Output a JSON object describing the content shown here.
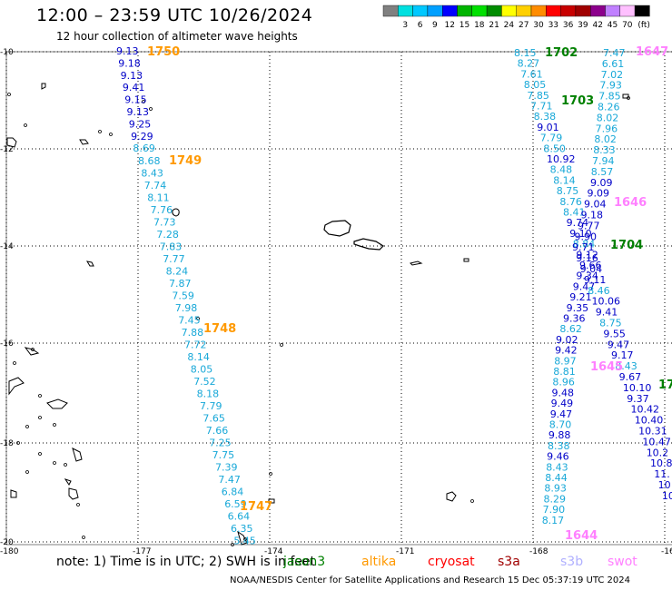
{
  "header": {
    "title": "12:00 – 23:59 UTC 10/26/2024",
    "subtitle": "12 hour collection of altimeter wave heights"
  },
  "colorbar": {
    "bins": [
      {
        "color": "#808080",
        "label": ""
      },
      {
        "color": "#00e0e0",
        "label": "3"
      },
      {
        "color": "#00c8ff",
        "label": "6"
      },
      {
        "color": "#00a0ff",
        "label": "9"
      },
      {
        "color": "#0000ff",
        "label": "12"
      },
      {
        "color": "#00b400",
        "label": "15"
      },
      {
        "color": "#00e000",
        "label": "18"
      },
      {
        "color": "#008c00",
        "label": "21"
      },
      {
        "color": "#ffff00",
        "label": "24"
      },
      {
        "color": "#ffd000",
        "label": "27"
      },
      {
        "color": "#ff8c00",
        "label": "30"
      },
      {
        "color": "#ff0000",
        "label": "33"
      },
      {
        "color": "#c80000",
        "label": "36"
      },
      {
        "color": "#a00000",
        "label": "39"
      },
      {
        "color": "#8c008c",
        "label": "42"
      },
      {
        "color": "#c080ff",
        "label": "45"
      },
      {
        "color": "#ffc0ff",
        "label": "70"
      },
      {
        "color": "#000000",
        "label": "(ft)"
      }
    ]
  },
  "axes": {
    "lat_labels": [
      "-10",
      "-12",
      "-14",
      "-16",
      "-18",
      "-20"
    ],
    "lon_labels": [
      "-180",
      "-177",
      "-174",
      "-171",
      "-168",
      "-16"
    ]
  },
  "colors": {
    "cyan": "#18a8d8",
    "blue": "#0000c8",
    "jason": "#008000",
    "altika": "#ff9900",
    "cryosat": "#ff0000",
    "s3a": "#a00000",
    "s3b": "#b0b0ff",
    "swot": "#ff80ff"
  },
  "tracks": [
    {
      "time": "1750",
      "color": "altika",
      "values": [
        [
          "9.13",
          "blue"
        ],
        [
          "9.18",
          "blue"
        ],
        [
          "9.13",
          "blue"
        ],
        [
          "9.41",
          "blue"
        ],
        [
          "9.15",
          "blue"
        ],
        [
          "9.13",
          "blue"
        ],
        [
          "9.25",
          "blue"
        ],
        [
          "9.29",
          "blue"
        ],
        [
          "8.69",
          "cyan"
        ]
      ]
    },
    {
      "time": "1749",
      "color": "altika",
      "values": [
        [
          "8.68",
          "cyan"
        ],
        [
          "8.43",
          "cyan"
        ],
        [
          "7.74",
          "cyan"
        ],
        [
          "8.11",
          "cyan"
        ],
        [
          "7.76",
          "cyan"
        ],
        [
          "7.73",
          "cyan"
        ],
        [
          "7.28",
          "cyan"
        ],
        [
          "7.83",
          "cyan"
        ],
        [
          "7.77",
          "cyan"
        ],
        [
          "8.24",
          "cyan"
        ],
        [
          "7.87",
          "cyan"
        ],
        [
          "7.59",
          "cyan"
        ],
        [
          "7.98",
          "cyan"
        ],
        [
          "7.45",
          "cyan"
        ],
        [
          "7.88",
          "cyan"
        ],
        [
          "7.72",
          "cyan"
        ],
        [
          "8.14",
          "cyan"
        ],
        [
          "8.05",
          "cyan"
        ],
        [
          "7.52",
          "cyan"
        ],
        [
          "8.18",
          "cyan"
        ],
        [
          "7.79",
          "cyan"
        ],
        [
          "7.65",
          "cyan"
        ],
        [
          "7.66",
          "cyan"
        ],
        [
          "7.25",
          "cyan"
        ],
        [
          "7.75",
          "cyan"
        ],
        [
          "7.39",
          "cyan"
        ],
        [
          "7.47",
          "cyan"
        ],
        [
          "6.84",
          "cyan"
        ],
        [
          "6.59",
          "cyan"
        ],
        [
          "6.64",
          "cyan"
        ],
        [
          "6.35",
          "cyan"
        ],
        [
          "5.45",
          "cyan"
        ]
      ]
    },
    {
      "time": "1748",
      "color": "altika"
    },
    {
      "time": "1747",
      "color": "altika"
    },
    {
      "time": "1702",
      "color": "jason",
      "values": [
        [
          "8.15",
          "cyan"
        ],
        [
          "8.27",
          "cyan"
        ],
        [
          "7.61",
          "cyan"
        ],
        [
          "8.05",
          "cyan"
        ],
        [
          "7.85",
          "cyan"
        ],
        [
          "7.71",
          "cyan"
        ],
        [
          "8.38",
          "cyan"
        ],
        [
          "9.01",
          "blue"
        ],
        [
          "7.79",
          "cyan"
        ],
        [
          "8.50",
          "cyan"
        ],
        [
          "10.92",
          "blue"
        ],
        [
          "8.48",
          "cyan"
        ],
        [
          "8.14",
          "cyan"
        ],
        [
          "8.75",
          "cyan"
        ],
        [
          "8.76",
          "cyan"
        ],
        [
          "8.41",
          "cyan"
        ],
        [
          "9.74",
          "blue"
        ],
        [
          "9.10",
          "blue"
        ],
        [
          "8.84",
          "cyan"
        ],
        [
          "9.12",
          "blue"
        ],
        [
          "9.66",
          "blue"
        ],
        [
          "9.34",
          "blue"
        ],
        [
          "9.47",
          "blue"
        ],
        [
          "9.21",
          "blue"
        ],
        [
          "9.35",
          "blue"
        ],
        [
          "9.36",
          "blue"
        ],
        [
          "8.62",
          "cyan"
        ],
        [
          "9.02",
          "blue"
        ],
        [
          "9.42",
          "blue"
        ],
        [
          "8.97",
          "cyan"
        ],
        [
          "8.81",
          "cyan"
        ],
        [
          "8.96",
          "cyan"
        ],
        [
          "9.48",
          "blue"
        ],
        [
          "9.49",
          "blue"
        ],
        [
          "9.47",
          "blue"
        ],
        [
          "8.70",
          "cyan"
        ],
        [
          "9.88",
          "blue"
        ],
        [
          "8.38",
          "cyan"
        ],
        [
          "9.46",
          "blue"
        ],
        [
          "8.43",
          "cyan"
        ],
        [
          "8.44",
          "cyan"
        ],
        [
          "8.93",
          "cyan"
        ],
        [
          "8.29",
          "cyan"
        ],
        [
          "7.90",
          "cyan"
        ],
        [
          "8.17",
          "cyan"
        ]
      ]
    },
    {
      "time": "1703",
      "color": "jason",
      "values": [
        [
          "7.47",
          "cyan"
        ],
        [
          "6.61",
          "cyan"
        ],
        [
          "7.02",
          "cyan"
        ],
        [
          "7.93",
          "cyan"
        ],
        [
          "7.85",
          "cyan"
        ],
        [
          "8.26",
          "cyan"
        ],
        [
          "8.02",
          "cyan"
        ],
        [
          "7.96",
          "cyan"
        ],
        [
          "8.02",
          "cyan"
        ],
        [
          "8.33",
          "cyan"
        ],
        [
          "7.94",
          "cyan"
        ],
        [
          "8.57",
          "cyan"
        ],
        [
          "9.09",
          "blue"
        ],
        [
          "9.09",
          "blue"
        ],
        [
          "9.04",
          "blue"
        ],
        [
          "9.18",
          "blue"
        ],
        [
          "9.77",
          "blue"
        ],
        [
          "9.90",
          "blue"
        ],
        [
          "9.71",
          "blue"
        ],
        [
          "9.16",
          "blue"
        ],
        [
          "9.04",
          "blue"
        ],
        [
          "9.11",
          "blue"
        ],
        [
          "8.46",
          "cyan"
        ],
        [
          "10.06",
          "blue"
        ],
        [
          "9.41",
          "blue"
        ],
        [
          "8.75",
          "cyan"
        ],
        [
          "9.55",
          "blue"
        ],
        [
          "9.47",
          "blue"
        ],
        [
          "9.17",
          "blue"
        ],
        [
          "8.43",
          "cyan"
        ],
        [
          "9.67",
          "blue"
        ],
        [
          "10.10",
          "blue"
        ],
        [
          "9.37",
          "blue"
        ],
        [
          "10.42",
          "blue"
        ],
        [
          "10.40",
          "blue"
        ],
        [
          "10.31",
          "blue"
        ],
        [
          "10.47",
          "blue"
        ],
        [
          "10.2",
          "blue"
        ],
        [
          "10.8",
          "blue"
        ],
        [
          "11.",
          "blue"
        ],
        [
          "10",
          "blue"
        ],
        [
          "10",
          "blue"
        ]
      ]
    },
    {
      "time": "1704",
      "color": "jason"
    },
    {
      "time": "1647",
      "color": "swot"
    },
    {
      "time": "1646",
      "color": "swot"
    },
    {
      "time": "1645",
      "color": "swot"
    },
    {
      "time": "1644",
      "color": "swot"
    },
    {
      "time": "17",
      "color": "jason"
    }
  ],
  "note": {
    "prefix": "note:  1) Time is in UTC; 2) SWH is in feet",
    "legend": [
      {
        "label": "jason3",
        "color": "jason"
      },
      {
        "label": "altika",
        "color": "altika"
      },
      {
        "label": "cryosat",
        "color": "cryosat"
      },
      {
        "label": "s3a",
        "color": "s3a"
      },
      {
        "label": "s3b",
        "color": "s3b"
      },
      {
        "label": "swot",
        "color": "swot"
      }
    ]
  },
  "credit": "NOAA/NESDIS Center for Satellite Applications and Research   15 Dec 05:37:19 UTC 2024"
}
